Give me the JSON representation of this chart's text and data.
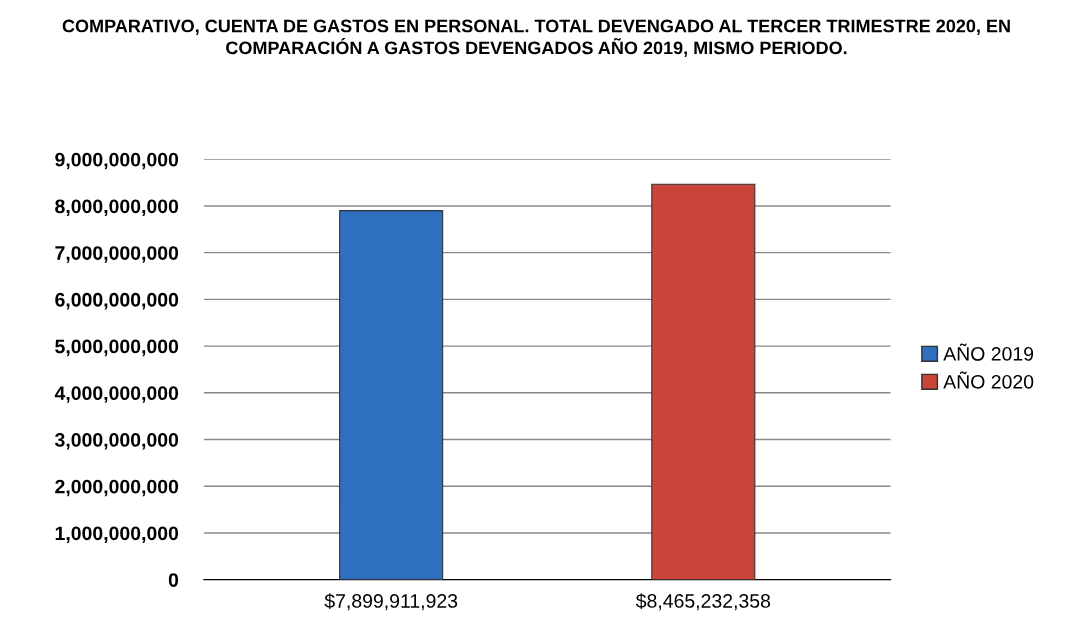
{
  "chart_data": {
    "type": "bar",
    "title": "COMPARATIVO, CUENTA DE GASTOS EN PERSONAL. TOTAL DEVENGADO AL TERCER TRIMESTRE 2020, EN COMPARACIÓN A GASTOS DEVENGADOS AÑO 2019, MISMO PERIODO.",
    "categories": [
      "$7,899,911,923",
      "$8,465,232,358"
    ],
    "series": [
      {
        "name": "AÑO 2019",
        "color": "#2e6fc0",
        "values": [
          7899911923,
          null
        ]
      },
      {
        "name": "AÑO 2020",
        "color": "#c9453a",
        "values": [
          null,
          8465232358
        ]
      }
    ],
    "ylim": [
      0,
      9000000000
    ],
    "yticks": [
      {
        "value": 0,
        "label": "0"
      },
      {
        "value": 1000000000,
        "label": "1,000,000,000"
      },
      {
        "value": 2000000000,
        "label": "2,000,000,000"
      },
      {
        "value": 3000000000,
        "label": "3,000,000,000"
      },
      {
        "value": 4000000000,
        "label": "4,000,000,000"
      },
      {
        "value": 5000000000,
        "label": "5,000,000,000"
      },
      {
        "value": 6000000000,
        "label": "6,000,000,000"
      },
      {
        "value": 7000000000,
        "label": "7,000,000,000"
      },
      {
        "value": 8000000000,
        "label": "8,000,000,000"
      },
      {
        "value": 9000000000,
        "label": "9,000,000,000"
      }
    ],
    "grid": "y",
    "legend": "right"
  }
}
